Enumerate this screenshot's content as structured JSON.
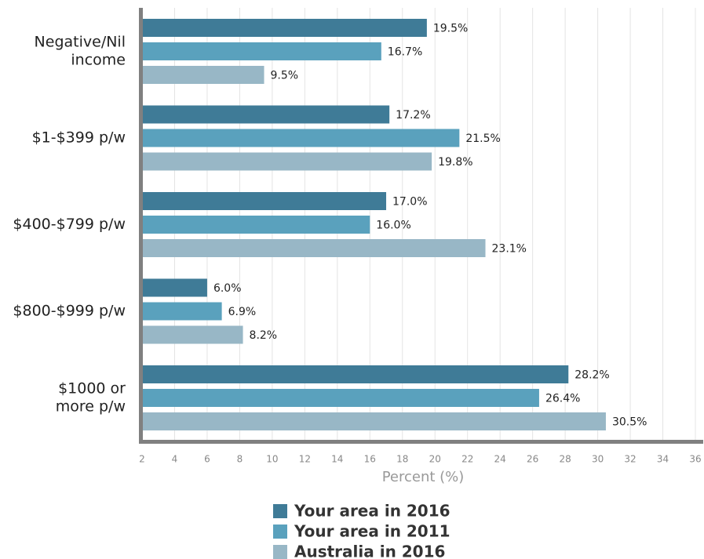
{
  "chart_data": {
    "type": "hbar",
    "categories": [
      [
        "Negative/Nil",
        "income"
      ],
      [
        "$1-$399 p/w"
      ],
      [
        "$400-$799 p/w"
      ],
      [
        "$800-$999 p/w"
      ],
      [
        "$1000 or",
        "more p/w"
      ]
    ],
    "series": [
      {
        "name": "Your area in 2016",
        "color": "#3f7b97",
        "values": [
          19.5,
          17.2,
          17.0,
          6.0,
          28.2
        ],
        "value_labels": [
          "19.5%",
          "17.2%",
          "17.0%",
          "6.0%",
          "28.2%"
        ]
      },
      {
        "name": "Your area in 2011",
        "color": "#5aa1bd",
        "values": [
          16.7,
          21.5,
          16.0,
          6.9,
          26.4
        ],
        "value_labels": [
          "16.7%",
          "21.5%",
          "16.0%",
          "6.9%",
          "26.4%"
        ]
      },
      {
        "name": "Australia in 2016",
        "color": "#98b7c6",
        "values": [
          9.5,
          19.8,
          23.1,
          8.2,
          30.5
        ],
        "value_labels": [
          "9.5%",
          "19.8%",
          "23.1%",
          "8.2%",
          "30.5%"
        ]
      }
    ],
    "xlabel": "Percent (%)",
    "xlim": [
      2,
      36
    ],
    "xticks": [
      2,
      4,
      6,
      8,
      10,
      12,
      14,
      16,
      18,
      20,
      22,
      24,
      26,
      28,
      30,
      32,
      34,
      36
    ],
    "grid": true,
    "legend": "bottom"
  }
}
